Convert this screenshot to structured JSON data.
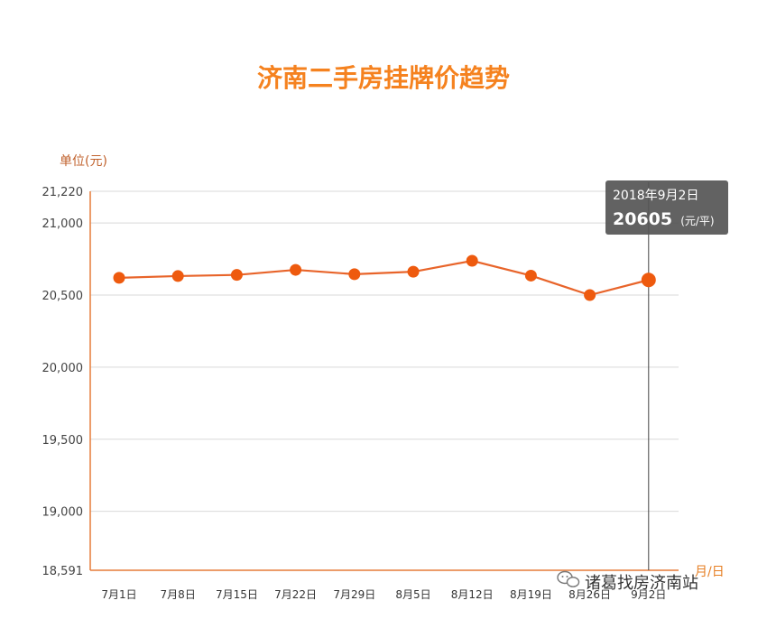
{
  "chart_data": {
    "type": "line",
    "title": "济南二手房挂牌价趋势",
    "ylabel": "单位(元)",
    "xlabel": "月/日",
    "categories": [
      "7月1日",
      "7月8日",
      "7月15日",
      "7月22日",
      "7月29日",
      "8月5日",
      "8月12日",
      "8月19日",
      "8月26日",
      "9月2日"
    ],
    "series": [
      {
        "values": [
          20620,
          20632,
          20640,
          20675,
          20645,
          20662,
          20738,
          20635,
          20500,
          20605
        ]
      }
    ],
    "y_ticks": [
      "21,220",
      "21,000",
      "20,500",
      "20,000",
      "19,500",
      "19,000",
      "18,591"
    ],
    "y_tick_values": [
      21220,
      21000,
      20500,
      20000,
      19500,
      19000,
      18591
    ],
    "ylim": [
      18591,
      21220
    ],
    "grid": true,
    "line_color": "#e8642a",
    "marker_color": "#ee5a0e",
    "axis_color": "#e57b38",
    "tooltip": {
      "date": "2018年9月2日",
      "value": "20605",
      "unit": "(元/平)",
      "index": 9
    },
    "watermark": "诸葛找房济南站"
  }
}
